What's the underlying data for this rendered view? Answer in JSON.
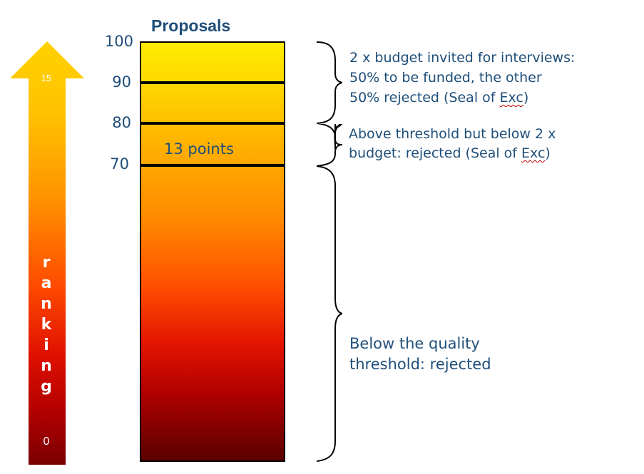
{
  "ranking_arrow": {
    "letters": [
      "r",
      "a",
      "n",
      "k",
      "i",
      "n",
      "g"
    ],
    "top_value": "15",
    "bottom_value": "0"
  },
  "bar": {
    "title": "Proposals",
    "ticks": [
      "100",
      "90",
      "80",
      "70"
    ],
    "band_label": "13 points"
  },
  "descriptions": {
    "top": {
      "line1": "2 x budget invited for interviews:",
      "line2": "50% to be funded, the other",
      "line3_prefix": "50% rejected (Seal of ",
      "line3_word": "Exc",
      "line3_suffix": ")"
    },
    "middle": {
      "line1": "Above threshold but below 2 x",
      "line2_prefix": "budget: rejected (Seal of ",
      "line2_word": "Exc",
      "line2_suffix": ")"
    },
    "bottom": {
      "line1": "Below the quality",
      "line2": "threshold: rejected"
    }
  },
  "colors": {
    "text": "#1f4e79",
    "arrow_top": "#ffd200",
    "arrow_bottom": "#8a0000",
    "bar_top": "#ffed00",
    "bar_bottom": "#5a0000"
  }
}
